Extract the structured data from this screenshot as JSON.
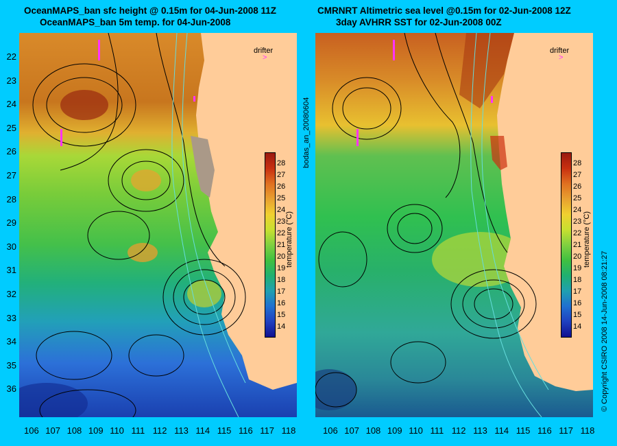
{
  "left_panel": {
    "title_line1": "OceanMAPS_ban sfc height @ 0.15m for 04-Jun-2008 11Z",
    "title_line2": "OceanMAPS_ban 5m temp. for 04-Jun-2008",
    "legend_label": "drifter",
    "colorbar_label": "temperature (°C)"
  },
  "right_panel": {
    "title_line1": "CMRNRT Altimetric sea level  @0.15m  for 02-Jun-2008 12Z",
    "title_line2": "3day AVHRR SST for 02-Jun-2008 00Z",
    "legend_label": "drifter",
    "colorbar_label": "temperature (°C)"
  },
  "side_label": "bodas_an_20080604",
  "copyright": "© Copyright CSIRO 2008   14-Jun-2008 08:21:27",
  "axes": {
    "x_ticks": [
      "106",
      "107",
      "108",
      "109",
      "110",
      "111",
      "112",
      "113",
      "114",
      "115",
      "116",
      "117",
      "118"
    ],
    "y_ticks": [
      "22",
      "23",
      "24",
      "25",
      "26",
      "27",
      "28",
      "29",
      "30",
      "31",
      "32",
      "33",
      "34",
      "35",
      "36"
    ]
  },
  "colorbar": {
    "ticks": [
      "28",
      "27",
      "26",
      "25",
      "24",
      "23",
      "22",
      "21",
      "20",
      "19",
      "18",
      "17",
      "16",
      "15",
      "14"
    ]
  },
  "colors": {
    "background": "#00ccff",
    "land": "#ffcc99",
    "drifter": "#ff33ff",
    "contour": "#000000",
    "bathymetry": "#66dddd"
  }
}
